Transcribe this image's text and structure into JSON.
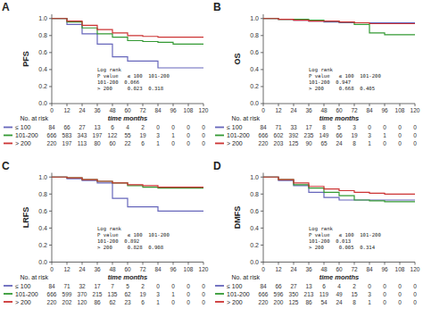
{
  "chart_data": [
    {
      "type": "step",
      "title": "A",
      "ylabel": "PFS",
      "xlabel": "time months",
      "annotations": [
        "Log rank\nP value   ≤ 100  101-200\n101-200  0.066\n> 200     0.023  0.318"
      ],
      "at_risk_label": "No. at risk",
      "xlim": [
        0,
        120
      ],
      "xticks": [
        0,
        12,
        24,
        36,
        48,
        60,
        72,
        84,
        96,
        108,
        120
      ],
      "ylim": [
        0.0,
        1.05
      ],
      "yticks": [
        {
          "value": 0.0,
          "label": "0.0"
        },
        {
          "value": 0.2,
          "label": "0.2"
        },
        {
          "value": 0.4,
          "label": "0.4"
        },
        {
          "value": 0.6,
          "label": "0.6"
        },
        {
          "value": 0.8,
          "label": "0.8"
        },
        {
          "value": 1.0,
          "label": "1.0"
        }
      ],
      "series": [
        {
          "name": "≤ 100",
          "color": "#6666bb",
          "x": [
            0,
            12,
            24,
            36,
            48,
            60,
            84,
            120
          ],
          "values": [
            1.0,
            0.93,
            0.82,
            0.7,
            0.55,
            0.5,
            0.42,
            0.42
          ],
          "at_risk": [
            84,
            66,
            27,
            13,
            6,
            4,
            2,
            0,
            0,
            0,
            0
          ]
        },
        {
          "name": "101-200",
          "color": "#339933",
          "x": [
            0,
            12,
            24,
            36,
            48,
            60,
            72,
            84,
            96,
            120
          ],
          "values": [
            1.0,
            0.96,
            0.89,
            0.82,
            0.78,
            0.74,
            0.73,
            0.72,
            0.7,
            0.7
          ],
          "at_risk": [
            666,
            583,
            343,
            197,
            122,
            55,
            19,
            3,
            1,
            0,
            0
          ]
        },
        {
          "name": "> 200",
          "color": "#cc3333",
          "x": [
            0,
            12,
            24,
            36,
            48,
            60,
            72,
            84,
            120
          ],
          "values": [
            1.0,
            0.97,
            0.92,
            0.87,
            0.83,
            0.8,
            0.79,
            0.78,
            0.78
          ],
          "at_risk": [
            220,
            197,
            113,
            80,
            60,
            22,
            6,
            1,
            0,
            0,
            0
          ]
        }
      ]
    },
    {
      "type": "step",
      "title": "B",
      "ylabel": "OS",
      "xlabel": "time months",
      "annotations": [
        "Log rank\nP value   ≤ 100  101-200\n101-200  0.947\n> 200     0.668  0.405"
      ],
      "at_risk_label": "No. at risk",
      "xlim": [
        0,
        120
      ],
      "xticks": [
        0,
        12,
        24,
        36,
        48,
        60,
        72,
        84,
        96,
        108,
        120
      ],
      "ylim": [
        0.0,
        1.05
      ],
      "yticks": [
        {
          "value": 0.0,
          "label": "0.0"
        },
        {
          "value": 0.2,
          "label": "0.2"
        },
        {
          "value": 0.4,
          "label": "0.4"
        },
        {
          "value": 0.6,
          "label": "0.6"
        },
        {
          "value": 0.8,
          "label": "0.8"
        },
        {
          "value": 1.0,
          "label": "1.0"
        }
      ],
      "series": [
        {
          "name": "≤ 100",
          "color": "#6666bb",
          "x": [
            0,
            12,
            24,
            36,
            48,
            60,
            72,
            120
          ],
          "values": [
            1.0,
            0.99,
            0.98,
            0.97,
            0.96,
            0.95,
            0.95,
            0.95
          ],
          "at_risk": [
            84,
            71,
            33,
            17,
            8,
            5,
            3,
            0,
            0,
            0,
            0
          ]
        },
        {
          "name": "101-200",
          "color": "#339933",
          "x": [
            0,
            12,
            24,
            36,
            48,
            60,
            72,
            84,
            96,
            120
          ],
          "values": [
            1.0,
            0.99,
            0.99,
            0.98,
            0.97,
            0.96,
            0.93,
            0.83,
            0.81,
            0.81
          ],
          "at_risk": [
            666,
            602,
            392,
            235,
            149,
            66,
            19,
            3,
            1,
            0,
            0
          ]
        },
        {
          "name": "> 200",
          "color": "#cc3333",
          "x": [
            0,
            12,
            24,
            36,
            48,
            60,
            72,
            84,
            120
          ],
          "values": [
            1.0,
            0.99,
            0.98,
            0.97,
            0.97,
            0.96,
            0.95,
            0.94,
            0.94
          ],
          "at_risk": [
            220,
            203,
            125,
            90,
            65,
            24,
            8,
            1,
            0,
            0,
            0
          ]
        }
      ]
    },
    {
      "type": "step",
      "title": "C",
      "ylabel": "LRFS",
      "xlabel": "time months",
      "annotations": [
        "Log rank\nP value   ≤ 100  101-200\n101-200  0.892\n> 200     0.828  0.908"
      ],
      "at_risk_label": "No. at risk",
      "xlim": [
        0,
        120
      ],
      "xticks": [
        0,
        12,
        24,
        36,
        48,
        60,
        72,
        84,
        96,
        108,
        120
      ],
      "ylim": [
        0.0,
        1.05
      ],
      "yticks": [
        {
          "value": 0.0,
          "label": "0.0"
        },
        {
          "value": 0.2,
          "label": "0.2"
        },
        {
          "value": 0.4,
          "label": "0.4"
        },
        {
          "value": 0.6,
          "label": "0.6"
        },
        {
          "value": 0.8,
          "label": "0.8"
        },
        {
          "value": 1.0,
          "label": "1.0"
        }
      ],
      "series": [
        {
          "name": "≤ 100",
          "color": "#6666bb",
          "x": [
            0,
            12,
            24,
            36,
            48,
            60,
            72,
            84,
            120
          ],
          "values": [
            1.0,
            0.98,
            0.96,
            0.93,
            0.75,
            0.65,
            0.65,
            0.6,
            0.6
          ],
          "at_risk": [
            84,
            71,
            32,
            17,
            7,
            5,
            2,
            0,
            0,
            0,
            0
          ]
        },
        {
          "name": "101-200",
          "color": "#339933",
          "x": [
            0,
            12,
            24,
            36,
            48,
            60,
            72,
            84,
            96,
            120
          ],
          "values": [
            1.0,
            0.99,
            0.97,
            0.95,
            0.93,
            0.9,
            0.88,
            0.87,
            0.87,
            0.87
          ],
          "at_risk": [
            666,
            599,
            370,
            215,
            135,
            62,
            19,
            3,
            1,
            0,
            0
          ]
        },
        {
          "name": "> 200",
          "color": "#cc3333",
          "x": [
            0,
            12,
            24,
            36,
            48,
            60,
            72,
            84,
            120
          ],
          "values": [
            1.0,
            0.99,
            0.97,
            0.95,
            0.93,
            0.91,
            0.9,
            0.88,
            0.88
          ],
          "at_risk": [
            220,
            202,
            120,
            86,
            62,
            23,
            6,
            1,
            0,
            0,
            0
          ]
        }
      ]
    },
    {
      "type": "step",
      "title": "D",
      "ylabel": "DMFS",
      "xlabel": "time months",
      "annotations": [
        "Log rank\nP value   ≤ 100  101-200\n101-200  0.013\n> 200     0.005  0.314"
      ],
      "at_risk_label": "No. at risk",
      "xlim": [
        0,
        120
      ],
      "xticks": [
        0,
        12,
        24,
        36,
        48,
        60,
        72,
        84,
        96,
        108,
        120
      ],
      "ylim": [
        0.0,
        1.05
      ],
      "yticks": [
        {
          "value": 0.0,
          "label": "0.0"
        },
        {
          "value": 0.2,
          "label": "0.2"
        },
        {
          "value": 0.4,
          "label": "0.4"
        },
        {
          "value": 0.6,
          "label": "0.6"
        },
        {
          "value": 0.8,
          "label": "0.8"
        },
        {
          "value": 1.0,
          "label": "1.0"
        }
      ],
      "series": [
        {
          "name": "≤ 100",
          "color": "#6666bb",
          "x": [
            0,
            12,
            24,
            36,
            48,
            60,
            72,
            120
          ],
          "values": [
            1.0,
            0.96,
            0.9,
            0.82,
            0.76,
            0.73,
            0.73,
            0.73
          ],
          "at_risk": [
            84,
            66,
            27,
            13,
            6,
            4,
            2,
            0,
            0,
            0,
            0
          ]
        },
        {
          "name": "101-200",
          "color": "#339933",
          "x": [
            0,
            12,
            24,
            36,
            48,
            60,
            72,
            84,
            96,
            120
          ],
          "values": [
            1.0,
            0.97,
            0.91,
            0.87,
            0.82,
            0.78,
            0.73,
            0.72,
            0.71,
            0.71
          ],
          "at_risk": [
            666,
            596,
            350,
            213,
            119,
            49,
            15,
            3,
            0,
            0,
            0
          ]
        },
        {
          "name": "> 200",
          "color": "#cc3333",
          "x": [
            0,
            12,
            24,
            36,
            48,
            60,
            72,
            84,
            96,
            120
          ],
          "values": [
            1.0,
            0.97,
            0.93,
            0.89,
            0.86,
            0.84,
            0.82,
            0.81,
            0.8,
            0.8
          ],
          "at_risk": [
            220,
            200,
            125,
            86,
            54,
            24,
            8,
            1,
            0,
            0,
            0
          ]
        }
      ]
    }
  ]
}
